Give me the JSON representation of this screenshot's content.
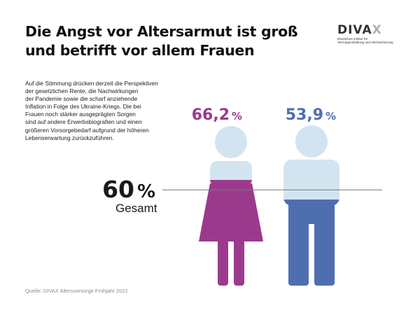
{
  "title_lines": [
    "Die Angst vor Altersarmut ist groß",
    "und betrifft vor allem Frauen"
  ],
  "logo": {
    "word_main": "DIVA",
    "sub_lines": [
      "Deutsches Institut für",
      "Vermögensbildung und Alterssicherung"
    ]
  },
  "body_lines": [
    "Auf die Stimmung drücken derzeit die Perspektiven",
    "der gesetzlichen Rente, die Nachwirkungen",
    "der Pandemie sowie die scharf anziehende",
    "Inflation in Folge des Ukraine-Kriegs. Die bei",
    "Frauen noch stärker ausgeprägten Sorgen",
    "sind auf andere Erwerbsbiografien und einen",
    "größeren Vorsorgebedarf aufgrund der höheren",
    "Lebenserwartung zurückzuführen."
  ],
  "source": "Quelle: DIVAX Altersvorsorge Frühjahr 2022",
  "colors": {
    "female": "#9b3a8c",
    "male": "#4f6eb0",
    "silhouette": "#d3e4f1",
    "line": "#777777",
    "text": "#1a1a1a"
  },
  "chart_data": {
    "type": "bar",
    "categories": [
      "Frauen",
      "Männer"
    ],
    "values": [
      66.2,
      53.9
    ],
    "value_labels": [
      "66,2",
      "53,9"
    ],
    "unit": "%",
    "ylim": [
      0,
      100
    ],
    "reference": {
      "value": 60,
      "label": "60",
      "unit": "%",
      "caption": "Gesamt"
    }
  }
}
